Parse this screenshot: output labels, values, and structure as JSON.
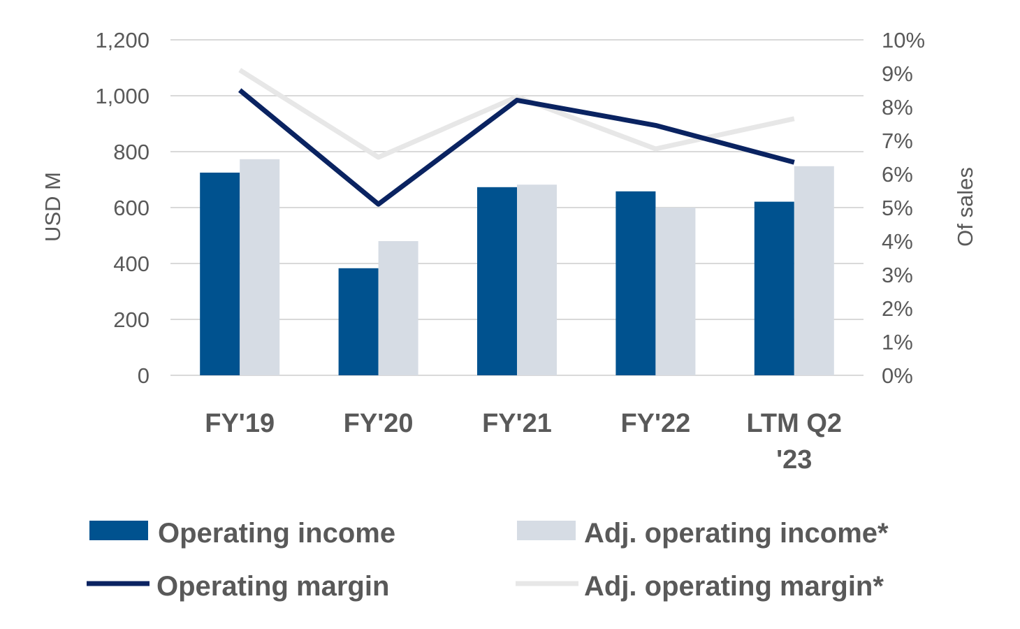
{
  "chart_data": {
    "type": "bar",
    "categories": [
      "FY'19",
      "FY'20",
      "FY'21",
      "FY'22",
      "LTM Q2 '23"
    ],
    "category_lines": [
      [
        "FY'19"
      ],
      [
        "FY'20"
      ],
      [
        "FY'21"
      ],
      [
        "FY'22"
      ],
      [
        "LTM Q2",
        "'23"
      ]
    ],
    "series": [
      {
        "name": "Operating income",
        "type": "bar",
        "axis": "left",
        "color": "#00528F",
        "values": [
          725,
          383,
          673,
          658,
          621
        ]
      },
      {
        "name": "Adj. operating income*",
        "type": "bar",
        "axis": "left",
        "color": "#D6DCE4",
        "values": [
          773,
          480,
          682,
          600,
          748
        ]
      },
      {
        "name": "Operating margin",
        "type": "line",
        "axis": "right",
        "color": "#0A2361",
        "values": [
          8.5,
          5.1,
          8.2,
          7.45,
          6.35
        ]
      },
      {
        "name": "Adj. operating margin*",
        "type": "line",
        "axis": "right",
        "color": "#E7E7E7",
        "values": [
          9.1,
          6.5,
          8.3,
          6.75,
          7.65
        ]
      }
    ],
    "ylabel": "USD M",
    "ylabel_right": "Of sales",
    "ylim": [
      0,
      1200
    ],
    "ylim_right": [
      0,
      10
    ],
    "yticks": [
      "0",
      "200",
      "400",
      "600",
      "800",
      "1,000",
      "1,200"
    ],
    "yticks_right": [
      "0%",
      "1%",
      "2%",
      "3%",
      "4%",
      "5%",
      "6%",
      "7%",
      "8%",
      "9%",
      "10%"
    ],
    "grid": true,
    "gridline_color": "#D9D9D9",
    "text_color": "#595959",
    "legend_position": "bottom"
  }
}
